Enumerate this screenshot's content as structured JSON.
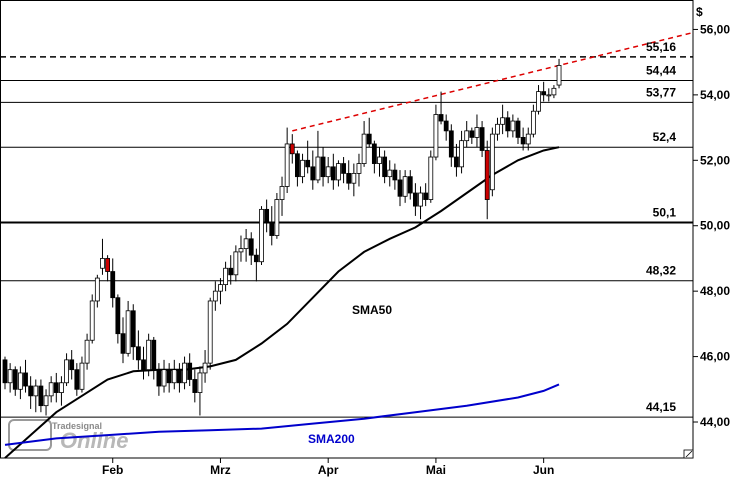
{
  "chart_data": {
    "type": "candlestick",
    "currency_label": "$",
    "y_ticks": [
      "56,00",
      "54,00",
      "52,00",
      "50,00",
      "48,00",
      "46,00",
      "44,00"
    ],
    "y_tick_values": [
      56,
      54,
      52,
      50,
      48,
      46,
      44
    ],
    "ylim": [
      42.9,
      56.9
    ],
    "x_ticks": [
      "Feb",
      "Mrz",
      "Apr",
      "Mai",
      "Jun"
    ],
    "x_tick_days": [
      21,
      42,
      63,
      84,
      105
    ],
    "x_range_days": [
      0,
      134
    ],
    "horizontal_levels": [
      {
        "label": "55,16",
        "value": 55.16,
        "style": "dashed"
      },
      {
        "label": "54,44",
        "value": 54.44,
        "style": "solid"
      },
      {
        "label": "53,77",
        "value": 53.77,
        "style": "solid"
      },
      {
        "label": "52,4",
        "value": 52.4,
        "style": "solid"
      },
      {
        "label": "50,1",
        "value": 50.1,
        "style": "solid-bold"
      },
      {
        "label": "48,32",
        "value": 48.32,
        "style": "solid"
      },
      {
        "label": "44,15",
        "value": 44.15,
        "style": "solid"
      }
    ],
    "trendline": {
      "color": "#dd0000",
      "style": "dashed",
      "points": [
        [
          56,
          52.9
        ],
        [
          134,
          55.9
        ]
      ]
    },
    "annotations": [
      {
        "text": "SMA50",
        "color": "#000000"
      },
      {
        "text": "SMA200",
        "color": "#0000cc"
      }
    ],
    "watermark": "Tradesignal Online",
    "candles": [
      [
        0,
        45.9,
        46.0,
        45.0,
        45.2
      ],
      [
        1,
        45.2,
        45.8,
        44.9,
        45.6
      ],
      [
        2,
        45.6,
        45.7,
        44.8,
        45.0
      ],
      [
        3,
        45.0,
        45.7,
        44.7,
        45.5
      ],
      [
        4,
        45.5,
        45.9,
        44.9,
        45.1
      ],
      [
        5,
        45.1,
        45.4,
        44.4,
        44.8
      ],
      [
        6,
        44.8,
        45.3,
        44.3,
        45.1
      ],
      [
        7,
        45.1,
        45.3,
        44.3,
        44.5
      ],
      [
        8,
        44.5,
        45.0,
        44.2,
        44.8
      ],
      [
        9,
        44.8,
        45.4,
        44.6,
        45.2
      ],
      [
        10,
        45.2,
        45.5,
        44.6,
        44.9
      ],
      [
        11,
        44.9,
        45.4,
        44.5,
        45.2
      ],
      [
        12,
        45.2,
        46.1,
        45.1,
        45.9
      ],
      [
        13,
        45.9,
        46.2,
        45.3,
        45.6
      ],
      [
        14,
        45.6,
        45.8,
        44.8,
        45.0
      ],
      [
        15,
        45.0,
        46.0,
        44.9,
        45.8
      ],
      [
        16,
        45.8,
        46.7,
        45.6,
        46.5
      ],
      [
        17,
        46.5,
        47.9,
        46.4,
        47.7
      ],
      [
        18,
        47.7,
        48.5,
        47.5,
        48.4
      ],
      [
        19,
        48.7,
        49.6,
        48.5,
        49.0
      ],
      [
        20,
        49.0,
        49.1,
        48.3,
        48.6
      ],
      [
        21,
        48.6,
        49.0,
        47.5,
        47.8
      ],
      [
        22,
        47.8,
        47.9,
        46.4,
        46.7
      ],
      [
        23,
        46.7,
        47.2,
        45.8,
        46.1
      ],
      [
        24,
        46.1,
        47.7,
        46.0,
        47.4
      ],
      [
        25,
        47.4,
        47.6,
        45.9,
        46.3
      ],
      [
        26,
        46.3,
        46.8,
        45.6,
        45.9
      ],
      [
        27,
        45.9,
        46.3,
        45.3,
        45.6
      ],
      [
        28,
        45.6,
        46.7,
        45.4,
        46.5
      ],
      [
        29,
        46.5,
        46.6,
        45.3,
        45.6
      ],
      [
        30,
        45.6,
        45.8,
        44.8,
        45.1
      ],
      [
        31,
        45.1,
        45.9,
        44.9,
        45.6
      ],
      [
        32,
        45.6,
        45.8,
        44.9,
        45.2
      ],
      [
        33,
        45.2,
        45.9,
        45.0,
        45.6
      ],
      [
        34,
        45.6,
        45.8,
        44.9,
        45.2
      ],
      [
        35,
        45.2,
        46.0,
        45.0,
        45.8
      ],
      [
        36,
        45.8,
        46.1,
        45.1,
        45.3
      ],
      [
        37,
        45.3,
        45.6,
        44.6,
        44.9
      ],
      [
        38,
        44.9,
        45.7,
        44.2,
        45.5
      ],
      [
        39,
        45.5,
        46.2,
        45.2,
        45.8
      ],
      [
        40,
        45.8,
        47.8,
        45.6,
        47.7
      ],
      [
        41,
        47.7,
        48.3,
        47.4,
        48.0
      ],
      [
        42,
        48.0,
        48.4,
        47.6,
        48.2
      ],
      [
        43,
        48.2,
        48.9,
        48.0,
        48.7
      ],
      [
        44,
        48.7,
        49.1,
        48.2,
        48.5
      ],
      [
        45,
        48.5,
        49.4,
        48.3,
        49.2
      ],
      [
        46,
        49.2,
        49.7,
        48.9,
        49.3
      ],
      [
        47,
        49.3,
        49.9,
        48.9,
        49.6
      ],
      [
        48,
        49.6,
        49.8,
        48.8,
        49.1
      ],
      [
        49,
        49.1,
        49.3,
        48.3,
        48.9
      ],
      [
        50,
        48.9,
        50.6,
        48.8,
        50.5
      ],
      [
        51,
        50.5,
        50.8,
        49.8,
        50.1
      ],
      [
        52,
        50.1,
        50.6,
        49.4,
        49.7
      ],
      [
        53,
        49.7,
        51.0,
        49.6,
        50.8
      ],
      [
        54,
        50.8,
        51.5,
        50.3,
        51.2
      ],
      [
        55,
        51.2,
        53.0,
        51.0,
        52.5
      ],
      [
        56,
        52.5,
        52.8,
        51.9,
        52.2
      ],
      [
        57,
        52.2,
        52.3,
        51.2,
        51.5
      ],
      [
        58,
        51.5,
        52.2,
        51.3,
        52.0
      ],
      [
        59,
        52.0,
        52.6,
        51.6,
        51.8
      ],
      [
        60,
        51.8,
        52.3,
        51.1,
        51.4
      ],
      [
        61,
        51.4,
        52.9,
        51.3,
        52.1
      ],
      [
        62,
        52.1,
        52.4,
        51.2,
        51.5
      ],
      [
        63,
        51.5,
        52.1,
        51.3,
        51.8
      ],
      [
        64,
        51.8,
        52.2,
        51.1,
        51.4
      ],
      [
        65,
        51.4,
        52.0,
        51.2,
        51.9
      ],
      [
        66,
        51.9,
        52.1,
        51.3,
        51.6
      ],
      [
        67,
        51.6,
        52.0,
        51.1,
        51.3
      ],
      [
        68,
        51.3,
        51.9,
        50.9,
        51.6
      ],
      [
        69,
        51.6,
        52.2,
        51.2,
        51.9
      ],
      [
        70,
        51.9,
        53.2,
        51.8,
        52.8
      ],
      [
        71,
        52.8,
        53.3,
        52.4,
        52.5
      ],
      [
        72,
        52.5,
        52.6,
        51.6,
        51.9
      ],
      [
        73,
        51.9,
        52.4,
        51.5,
        52.1
      ],
      [
        74,
        52.1,
        52.3,
        51.3,
        51.5
      ],
      [
        75,
        51.5,
        52.0,
        51.2,
        51.7
      ],
      [
        76,
        51.7,
        51.9,
        51.1,
        51.4
      ],
      [
        77,
        51.4,
        51.7,
        50.6,
        50.9
      ],
      [
        78,
        50.9,
        51.7,
        50.7,
        51.5
      ],
      [
        79,
        51.5,
        51.7,
        50.8,
        51.0
      ],
      [
        80,
        51.0,
        51.3,
        50.3,
        50.6
      ],
      [
        81,
        50.6,
        51.2,
        50.2,
        51.0
      ],
      [
        82,
        51.0,
        51.3,
        50.6,
        50.8
      ],
      [
        83,
        50.8,
        52.3,
        50.7,
        52.1
      ],
      [
        84,
        52.1,
        53.7,
        52.0,
        53.4
      ],
      [
        85,
        53.4,
        54.1,
        53.1,
        53.2
      ],
      [
        86,
        53.2,
        53.4,
        52.6,
        52.9
      ],
      [
        87,
        52.9,
        53.1,
        51.8,
        52.1
      ],
      [
        88,
        52.1,
        52.5,
        51.5,
        51.8
      ],
      [
        89,
        51.8,
        52.9,
        51.6,
        52.6
      ],
      [
        90,
        52.6,
        53.2,
        52.4,
        52.9
      ],
      [
        91,
        52.9,
        53.0,
        52.5,
        52.7
      ],
      [
        92,
        52.7,
        53.4,
        52.4,
        53.0
      ],
      [
        93,
        53.0,
        53.2,
        52.1,
        52.3
      ],
      [
        94,
        52.3,
        52.6,
        50.2,
        50.8
      ],
      [
        95,
        51.1,
        53.0,
        50.9,
        52.8
      ],
      [
        96,
        52.8,
        53.3,
        52.6,
        53.1
      ],
      [
        97,
        53.1,
        53.7,
        52.8,
        53.3
      ],
      [
        98,
        53.3,
        53.5,
        52.7,
        52.9
      ],
      [
        99,
        52.9,
        53.4,
        52.7,
        53.2
      ],
      [
        100,
        53.2,
        53.3,
        52.5,
        52.7
      ],
      [
        101,
        52.7,
        53.0,
        52.3,
        52.5
      ],
      [
        102,
        52.5,
        53.0,
        52.3,
        52.8
      ],
      [
        103,
        52.8,
        53.7,
        52.7,
        53.5
      ],
      [
        104,
        53.5,
        54.3,
        53.4,
        54.1
      ],
      [
        105,
        54.1,
        54.4,
        53.8,
        54.0
      ],
      [
        106,
        54.0,
        54.2,
        53.8,
        54.0
      ],
      [
        107,
        54.0,
        54.3,
        53.9,
        54.2
      ],
      [
        108,
        54.3,
        55.1,
        54.2,
        54.9
      ]
    ],
    "series": [
      {
        "name": "SMA50",
        "color": "#000000",
        "points": [
          [
            0,
            42.9
          ],
          [
            5,
            43.6
          ],
          [
            10,
            44.3
          ],
          [
            15,
            44.8
          ],
          [
            20,
            45.3
          ],
          [
            25,
            45.55
          ],
          [
            30,
            45.6
          ],
          [
            35,
            45.6
          ],
          [
            40,
            45.7
          ],
          [
            45,
            45.9
          ],
          [
            50,
            46.4
          ],
          [
            55,
            47.0
          ],
          [
            60,
            47.8
          ],
          [
            65,
            48.6
          ],
          [
            70,
            49.2
          ],
          [
            75,
            49.6
          ],
          [
            80,
            49.95
          ],
          [
            85,
            50.45
          ],
          [
            90,
            51.0
          ],
          [
            95,
            51.55
          ],
          [
            100,
            52.0
          ],
          [
            105,
            52.3
          ],
          [
            108,
            52.4
          ]
        ]
      },
      {
        "name": "SMA200",
        "color": "#0000cc",
        "points": [
          [
            0,
            43.3
          ],
          [
            10,
            43.5
          ],
          [
            20,
            43.6
          ],
          [
            30,
            43.7
          ],
          [
            40,
            43.75
          ],
          [
            50,
            43.8
          ],
          [
            60,
            43.95
          ],
          [
            70,
            44.1
          ],
          [
            80,
            44.3
          ],
          [
            90,
            44.5
          ],
          [
            100,
            44.75
          ],
          [
            105,
            44.95
          ],
          [
            108,
            45.15
          ]
        ]
      }
    ]
  }
}
